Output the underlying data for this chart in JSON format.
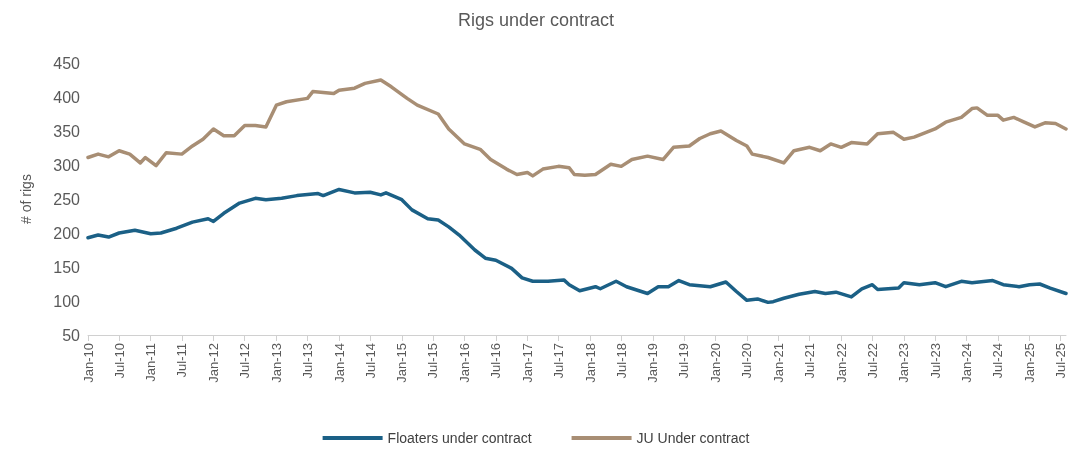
{
  "chart_data": {
    "type": "line",
    "title": "Rigs under contract",
    "ylabel": "# of rigs",
    "xlim": [
      "2010-01",
      "2025-08"
    ],
    "xticks": [
      {
        "value": "2010-01",
        "label": "Jan-10"
      },
      {
        "value": "2010-07",
        "label": "Jul-10"
      },
      {
        "value": "2011-01",
        "label": "Jan-11"
      },
      {
        "value": "2011-07",
        "label": "Jul-11"
      },
      {
        "value": "2012-01",
        "label": "Jan-12"
      },
      {
        "value": "2012-07",
        "label": "Jul-12"
      },
      {
        "value": "2013-01",
        "label": "Jan-13"
      },
      {
        "value": "2013-07",
        "label": "Jul-13"
      },
      {
        "value": "2014-01",
        "label": "Jan-14"
      },
      {
        "value": "2014-07",
        "label": "Jul-14"
      },
      {
        "value": "2015-01",
        "label": "Jan-15"
      },
      {
        "value": "2015-07",
        "label": "Jul-15"
      },
      {
        "value": "2016-01",
        "label": "Jan-16"
      },
      {
        "value": "2016-07",
        "label": "Jul-16"
      },
      {
        "value": "2017-01",
        "label": "Jan-17"
      },
      {
        "value": "2017-07",
        "label": "Jul-17"
      },
      {
        "value": "2018-01",
        "label": "Jan-18"
      },
      {
        "value": "2018-07",
        "label": "Jul-18"
      },
      {
        "value": "2019-01",
        "label": "Jan-19"
      },
      {
        "value": "2019-07",
        "label": "Jul-19"
      },
      {
        "value": "2020-01",
        "label": "Jan-20"
      },
      {
        "value": "2020-07",
        "label": "Jul-20"
      },
      {
        "value": "2021-01",
        "label": "Jan-21"
      },
      {
        "value": "2021-07",
        "label": "Jul-21"
      },
      {
        "value": "2022-01",
        "label": "Jan-22"
      },
      {
        "value": "2022-07",
        "label": "Jul-22"
      },
      {
        "value": "2023-01",
        "label": "Jan-23"
      },
      {
        "value": "2023-07",
        "label": "Jul-23"
      },
      {
        "value": "2024-01",
        "label": "Jan-24"
      },
      {
        "value": "2024-07",
        "label": "Jul-24"
      },
      {
        "value": "2025-01",
        "label": "Jan-25"
      },
      {
        "value": "2025-07",
        "label": "Jul-25"
      }
    ],
    "ylim": [
      50,
      450
    ],
    "yticks": [
      50,
      100,
      150,
      200,
      250,
      300,
      350,
      400,
      450
    ],
    "grid": false,
    "legend": "bottom",
    "marker": "none",
    "line_style": "solid",
    "series": [
      {
        "name": "Floaters under contract",
        "color": "#1b6086",
        "x": [
          "2010-01",
          "2010-03",
          "2010-05",
          "2010-07",
          "2010-10",
          "2011-01",
          "2011-03",
          "2011-06",
          "2011-09",
          "2011-12",
          "2012-01",
          "2012-03",
          "2012-06",
          "2012-09",
          "2012-11",
          "2013-02",
          "2013-05",
          "2013-09",
          "2013-10",
          "2014-01",
          "2014-04",
          "2014-07",
          "2014-09",
          "2014-10",
          "2015-01",
          "2015-03",
          "2015-06",
          "2015-08",
          "2015-10",
          "2015-12",
          "2016-03",
          "2016-05",
          "2016-07",
          "2016-10",
          "2016-12",
          "2017-02",
          "2017-05",
          "2017-08",
          "2017-09",
          "2017-11",
          "2018-02",
          "2018-03",
          "2018-06",
          "2018-08",
          "2018-12",
          "2019-02",
          "2019-04",
          "2019-06",
          "2019-08",
          "2019-12",
          "2020-03",
          "2020-05",
          "2020-07",
          "2020-09",
          "2020-11",
          "2020-12",
          "2021-02",
          "2021-05",
          "2021-08",
          "2021-10",
          "2021-12",
          "2022-03",
          "2022-05",
          "2022-07",
          "2022-08",
          "2022-12",
          "2023-01",
          "2023-04",
          "2023-07",
          "2023-09",
          "2023-12",
          "2024-02",
          "2024-06",
          "2024-08",
          "2024-11",
          "2025-01",
          "2025-03",
          "2025-05",
          "2025-08"
        ],
        "values": [
          193,
          197,
          194,
          200,
          204,
          199,
          200,
          207,
          216,
          221,
          217,
          229,
          244,
          251,
          249,
          251,
          255,
          258,
          255,
          264,
          259,
          260,
          256,
          259,
          249,
          234,
          221,
          219,
          209,
          197,
          175,
          163,
          160,
          148,
          134,
          129,
          129,
          131,
          124,
          115,
          121,
          118,
          129,
          121,
          111,
          121,
          121,
          130,
          124,
          121,
          128,
          114,
          101,
          103,
          98,
          99,
          104,
          110,
          114,
          111,
          113,
          106,
          118,
          124,
          117,
          119,
          127,
          124,
          127,
          121,
          129,
          127,
          130,
          124,
          121,
          124,
          125,
          119,
          111
        ]
      },
      {
        "name": "JU Under contract",
        "color": "#a88e74",
        "x": [
          "2010-01",
          "2010-03",
          "2010-05",
          "2010-07",
          "2010-09",
          "2010-11",
          "2010-12",
          "2011-02",
          "2011-04",
          "2011-07",
          "2011-09",
          "2011-11",
          "2012-01",
          "2012-03",
          "2012-05",
          "2012-07",
          "2012-09",
          "2012-11",
          "2013-01",
          "2013-03",
          "2013-07",
          "2013-08",
          "2013-12",
          "2014-01",
          "2014-04",
          "2014-06",
          "2014-09",
          "2014-11",
          "2015-02",
          "2015-04",
          "2015-08",
          "2015-10",
          "2016-01",
          "2016-04",
          "2016-06",
          "2016-09",
          "2016-11",
          "2017-01",
          "2017-02",
          "2017-04",
          "2017-07",
          "2017-09",
          "2017-10",
          "2017-12",
          "2018-02",
          "2018-05",
          "2018-07",
          "2018-09",
          "2018-12",
          "2019-03",
          "2019-05",
          "2019-08",
          "2019-10",
          "2019-12",
          "2020-02",
          "2020-05",
          "2020-07",
          "2020-08",
          "2020-11",
          "2021-02",
          "2021-04",
          "2021-07",
          "2021-09",
          "2021-11",
          "2022-01",
          "2022-03",
          "2022-06",
          "2022-08",
          "2022-11",
          "2023-01",
          "2023-03",
          "2023-07",
          "2023-09",
          "2023-12",
          "2024-02",
          "2024-03",
          "2024-05",
          "2024-07",
          "2024-08",
          "2024-10",
          "2024-12",
          "2025-02",
          "2025-04",
          "2025-06",
          "2025-08"
        ],
        "values": [
          311,
          316,
          312,
          321,
          316,
          303,
          311,
          299,
          318,
          316,
          328,
          338,
          353,
          343,
          343,
          358,
          358,
          356,
          388,
          393,
          398,
          408,
          405,
          410,
          413,
          420,
          425,
          415,
          398,
          388,
          375,
          353,
          331,
          323,
          308,
          294,
          286,
          289,
          284,
          294,
          298,
          296,
          286,
          285,
          286,
          301,
          298,
          308,
          313,
          308,
          326,
          328,
          339,
          346,
          350,
          336,
          328,
          316,
          311,
          303,
          321,
          326,
          321,
          331,
          326,
          333,
          331,
          346,
          348,
          338,
          341,
          353,
          363,
          370,
          383,
          384,
          373,
          373,
          366,
          370,
          363,
          356,
          362,
          361,
          353
        ]
      }
    ]
  }
}
